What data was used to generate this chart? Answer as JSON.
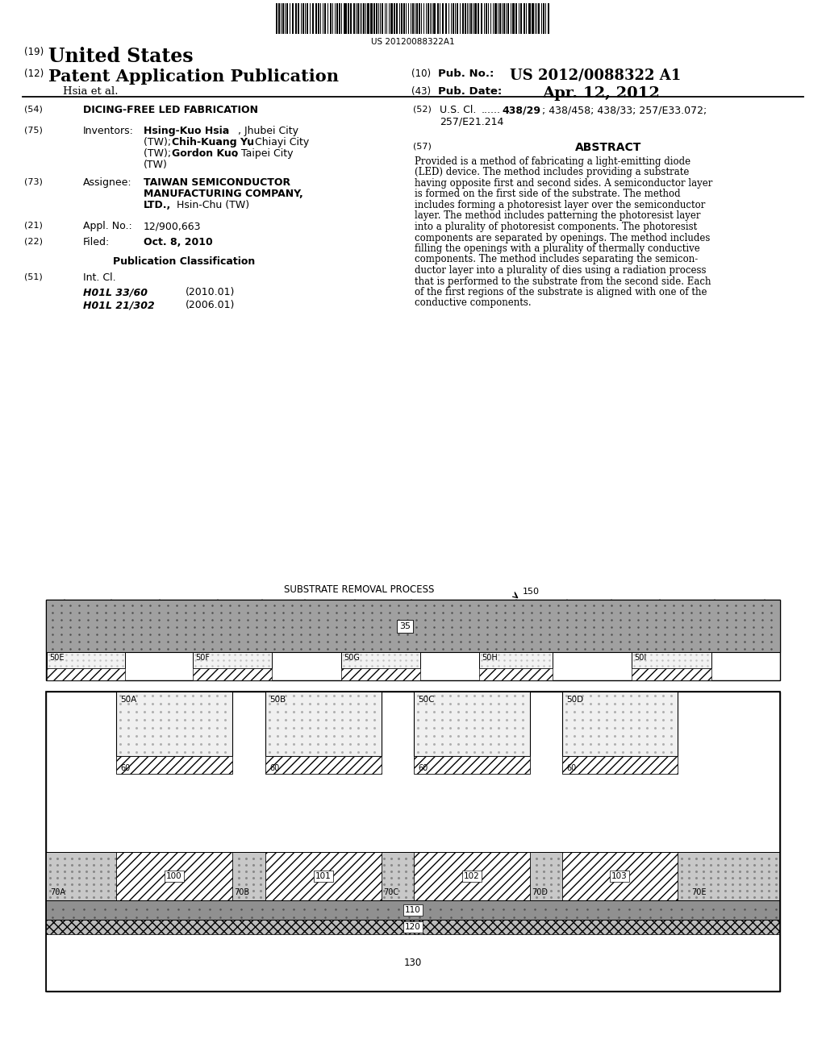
{
  "barcode_text": "US 20120088322A1",
  "title": "DICING-FREE LED FABRICATION",
  "patent_num": "US 2012/0088322 A1",
  "pub_date": "Apr. 12, 2012",
  "abstract_text": "Provided is a method of fabricating a light-emitting diode (LED) device. The method includes providing a substrate having opposite first and second sides. A semiconductor layer is formed on the first side of the substrate. The method includes forming a photoresist layer over the semiconductor layer. The method includes patterning the photoresist layer into a plurality of photoresist components. The photoresist components are separated by openings. The method includes filling the openings with a plurality of thermally conductive components. The method includes separating the semicon-ductor layer into a plurality of dies using a radiation process that is performed to the substrate from the second side. Each of the first regions of the substrate is aligned with one of the conductive components.",
  "diagram": {
    "label": "SUBSTRATE REMOVAL PROCESS",
    "ref": "150"
  }
}
